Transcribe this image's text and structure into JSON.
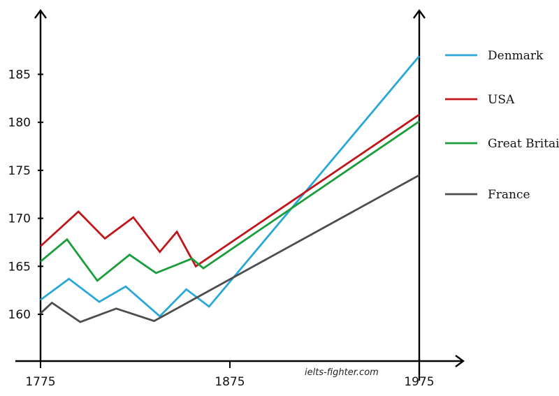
{
  "chart_data": {
    "type": "line",
    "xlim": [
      1775,
      1975
    ],
    "ylim": [
      156,
      191
    ],
    "x_ticks": [
      1775,
      1875,
      1975
    ],
    "y_ticks": [
      160,
      165,
      170,
      175,
      180,
      185
    ],
    "series": [
      {
        "name": "Denmark",
        "color": "#2aa7d8",
        "x": [
          1775,
          1790,
          1806,
          1820,
          1838,
          1852,
          1864,
          1975
        ],
        "y": [
          161.5,
          163.7,
          161.3,
          162.9,
          159.8,
          162.6,
          160.8,
          186.9
        ]
      },
      {
        "name": "USA",
        "color": "#c0161b",
        "x": [
          1775,
          1795,
          1809,
          1824,
          1838,
          1847,
          1857,
          1975
        ],
        "y": [
          167.1,
          170.7,
          167.9,
          170.1,
          166.5,
          168.6,
          165.0,
          180.8
        ]
      },
      {
        "name": "Great Britain",
        "color": "#1a9d3a",
        "x": [
          1775,
          1789,
          1805,
          1822,
          1836,
          1855,
          1861,
          1975
        ],
        "y": [
          165.5,
          167.8,
          163.5,
          166.2,
          164.3,
          165.8,
          164.8,
          180.1
        ]
      },
      {
        "name": "France",
        "color": "#4d4d4d",
        "x": [
          1775,
          1781,
          1796,
          1815,
          1835,
          1975
        ],
        "y": [
          160.1,
          161.2,
          159.2,
          160.6,
          159.3,
          174.5
        ]
      }
    ],
    "legend_position": "right",
    "grid": false
  },
  "watermark": "ielts-fighter.com"
}
